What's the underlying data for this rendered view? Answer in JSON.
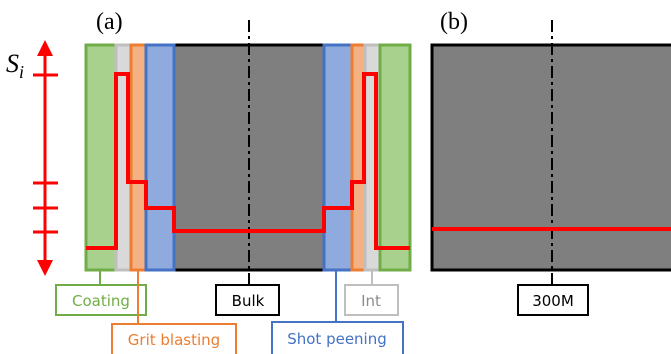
{
  "panels": {
    "a_label": "(a)",
    "b_label": "(b)"
  },
  "axis": {
    "symbol": "S",
    "subscript": "i"
  },
  "labels": {
    "coating": "Coating",
    "grit_blasting": "Grit blasting",
    "bulk": "Bulk",
    "shot_peening": "Shot peening",
    "interface": "Int",
    "material_300m": "300M"
  },
  "colors": {
    "coating": "#70ad47",
    "coating_fill": "#a9d18e",
    "grit_blasting": "#ed7d31",
    "grit_fill": "#f4b183",
    "shot_peening": "#4472c4",
    "shot_fill": "#8faadc",
    "interface": "#bfbfbf",
    "bulk": "#7f7f7f",
    "profile": "#ff0000"
  }
}
